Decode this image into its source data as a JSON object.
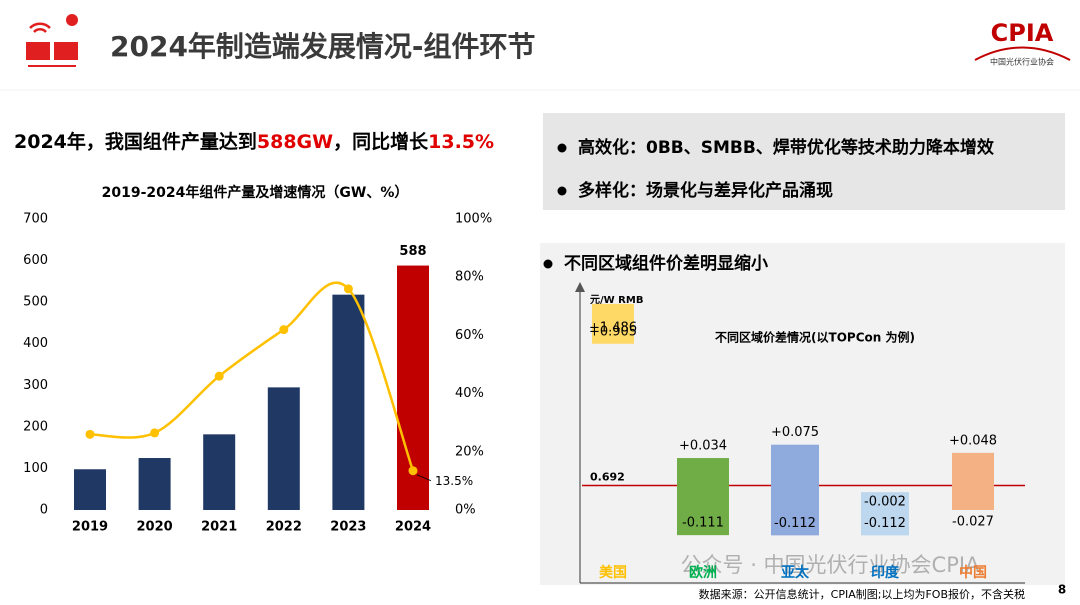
{
  "header": {
    "title": "2024年制造端发展情况-组件环节",
    "logo": "CPIA",
    "logo_subtitle": "中国光伏行业协会"
  },
  "headline": [
    {
      "text": "2024年，我国组件产量达到",
      "color": "#000000"
    },
    {
      "text": "588GW",
      "color": "#e00000"
    },
    {
      "text": "，同比增长",
      "color": "#000000"
    },
    {
      "text": "13.5%",
      "color": "#e00000"
    }
  ],
  "bullets_top": [
    "高效化：0BB、SMBB、焊带优化等技术助力降本增效",
    "多样化：场景化与差异化产品涌现"
  ],
  "bullet_region": "不同区域组件价差明显缩小",
  "footer": {
    "source": "数据来源：公开信息统计，CPIA制图;以上均为FOB报价，不含关税",
    "page": "8",
    "watermark": "公众号 · 中国光伏行业协会CPIA"
  },
  "chart_data": [
    {
      "type": "combo",
      "title": "2019-2024年组件产量及增速情况（GW、%）",
      "categories": [
        "2019",
        "2020",
        "2021",
        "2022",
        "2023",
        "2024"
      ],
      "series": [
        {
          "type": "bar",
          "colors": [
            "#203864",
            "#203864",
            "#203864",
            "#203864",
            "#203864",
            "#c00000"
          ],
          "values": [
            98,
            125,
            182,
            295,
            518,
            588
          ],
          "value_labels": [
            null,
            null,
            null,
            null,
            null,
            "588"
          ]
        },
        {
          "type": "line",
          "axis": "y2",
          "color": "#ffc000",
          "values": [
            26,
            26.5,
            46,
            62,
            76,
            13.5
          ],
          "value_labels": [
            null,
            null,
            null,
            null,
            null,
            "13.5%"
          ]
        }
      ],
      "ylim": [
        0,
        700
      ],
      "yticks": [
        0,
        100,
        200,
        300,
        400,
        500,
        600,
        700
      ],
      "y2lim": [
        0,
        100
      ],
      "y2ticks": [
        {
          "value": 0,
          "label": "0%"
        },
        {
          "value": 20,
          "label": "20%"
        },
        {
          "value": 40,
          "label": "40%"
        },
        {
          "value": 60,
          "label": "60%"
        },
        {
          "value": 80,
          "label": "80%"
        },
        {
          "value": 100,
          "label": "100%"
        }
      ]
    },
    {
      "type": "floating_bar",
      "title": "不同区域价差情况(以TOPCon 为例)",
      "y_label": "元/W  RMB",
      "baseline": {
        "value": 0.692,
        "label": "0.692"
      },
      "baseline_color": "#c00000",
      "yscale": "sqrt",
      "ylim": [
        -0.25,
        1.55
      ],
      "categories": [
        "美国",
        "欧洲",
        "亚太",
        "印度",
        "中国"
      ],
      "category_colors": [
        "#ffc000",
        "#00b050",
        "#0070c0",
        "#0070c0",
        "#ed7d31"
      ],
      "colors": [
        "#ffd966",
        "#70ad47",
        "#8faadc",
        "#bdd7ee",
        "#f4b183"
      ],
      "high": [
        1.486,
        0.034,
        0.075,
        -0.002,
        0.048
      ],
      "high_labels": [
        "+1.486",
        "+0.034",
        "+0.075",
        "-0.002",
        "+0.048"
      ],
      "low": [
        0.905,
        -0.111,
        -0.112,
        -0.112,
        -0.027
      ],
      "low_labels": [
        "+0.905",
        "-0.111",
        "-0.112",
        "-0.112",
        "-0.027"
      ]
    }
  ]
}
